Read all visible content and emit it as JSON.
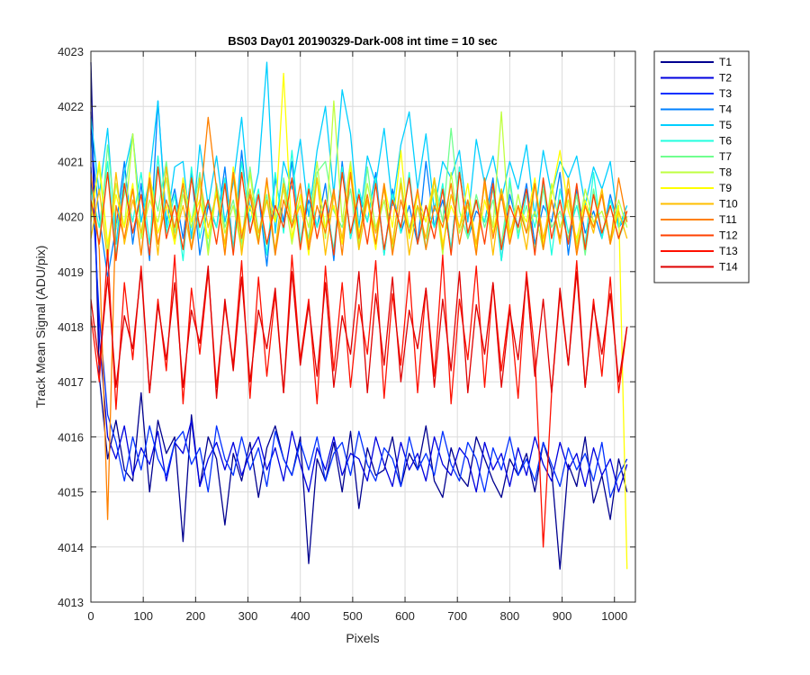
{
  "chart_data": {
    "type": "line",
    "title": "BS03 Day01 20190329-Dark-008 int time = 10 sec",
    "xlabel": "Pixels",
    "ylabel": "Track Mean Signal (ADU/pix)",
    "xlim": [
      0,
      1040
    ],
    "ylim": [
      4013,
      4023
    ],
    "xticks": [
      0,
      100,
      200,
      300,
      400,
      500,
      600,
      700,
      800,
      900,
      1000
    ],
    "yticks": [
      4013,
      4014,
      4015,
      4016,
      4017,
      4018,
      4019,
      4020,
      4021,
      4022,
      4023
    ],
    "grid": true,
    "legend_position": "outside-top-right",
    "x": [
      0,
      16,
      32,
      48,
      64,
      80,
      96,
      112,
      128,
      144,
      160,
      176,
      192,
      208,
      224,
      240,
      256,
      272,
      288,
      304,
      320,
      336,
      352,
      368,
      384,
      400,
      416,
      432,
      448,
      464,
      480,
      496,
      512,
      528,
      544,
      560,
      576,
      592,
      608,
      624,
      640,
      656,
      672,
      688,
      704,
      720,
      736,
      752,
      768,
      784,
      800,
      816,
      832,
      848,
      864,
      880,
      896,
      912,
      928,
      944,
      960,
      976,
      992,
      1008,
      1024
    ],
    "series": [
      {
        "name": "T1",
        "color": "#00008f",
        "values": [
          4022.8,
          4017.1,
          4015.6,
          4016.3,
          4015.4,
          4015.2,
          4016.8,
          4015.0,
          4016.3,
          4015.7,
          4016.0,
          4014.1,
          4016.4,
          4015.1,
          4016.0,
          4015.6,
          4014.4,
          4015.7,
          4015.2,
          4015.9,
          4014.9,
          4015.8,
          4016.2,
          4015.6,
          4015.3,
          4016.0,
          4013.7,
          4015.6,
          4015.2,
          4015.9,
          4015.0,
          4016.1,
          4014.7,
          4015.8,
          4015.3,
          4015.4,
          4016.0,
          4015.1,
          4015.7,
          4015.4,
          4016.2,
          4015.2,
          4014.9,
          4015.8,
          4015.3,
          4015.1,
          4016.0,
          4015.6,
          4015.2,
          4014.9,
          4015.6,
          4015.3,
          4015.7,
          4015.0,
          4015.9,
          4015.4,
          4013.6,
          4015.5,
          4015.1,
          4016.0,
          4014.8,
          4015.3,
          4014.5,
          4015.6,
          4015.0
        ]
      },
      {
        "name": "T2",
        "color": "#0000df",
        "values": [
          4021.9,
          4017.8,
          4016.0,
          4015.6,
          4016.2,
          4015.3,
          4015.8,
          4015.5,
          4016.1,
          4015.2,
          4015.9,
          4015.7,
          4016.3,
          4015.1,
          4015.6,
          4015.9,
          4015.4,
          4015.9,
          4015.3,
          4015.7,
          4016.0,
          4015.4,
          4015.8,
          4015.2,
          4016.1,
          4015.5,
          4015.0,
          4015.8,
          4015.4,
          4016.0,
          4015.3,
          4015.7,
          4015.6,
          4015.2,
          4016.0,
          4015.5,
          4015.1,
          4015.9,
          4015.4,
          4015.7,
          4015.2,
          4016.0,
          4015.5,
          4015.3,
          4015.8,
          4015.6,
          4015.0,
          4015.9,
          4015.4,
          4015.7,
          4015.1,
          4015.8,
          4015.3,
          4016.0,
          4015.5,
          4015.2,
          4015.9,
          4015.4,
          4015.7,
          4015.1,
          4015.8,
          4015.3,
          4015.6,
          4015.0,
          4015.5
        ]
      },
      {
        "name": "T3",
        "color": "#0030ff",
        "values": [
          4020.9,
          4018.2,
          4016.4,
          4015.9,
          4015.2,
          4016.0,
          4015.4,
          4016.2,
          4015.6,
          4015.3,
          4015.9,
          4016.1,
          4015.5,
          4015.8,
          4015.0,
          4016.2,
          4015.6,
          4015.3,
          4016.0,
          4015.4,
          4015.8,
          4015.1,
          4016.1,
          4015.6,
          4015.3,
          4015.9,
          4015.4,
          4016.0,
          4015.2,
          4015.7,
          4015.9,
          4015.3,
          4016.1,
          4015.5,
          4015.2,
          4015.8,
          4015.6,
          4015.1,
          4016.0,
          4015.4,
          4015.7,
          4015.3,
          4016.1,
          4015.5,
          4015.2,
          4015.9,
          4015.6,
          4015.0,
          4015.8,
          4015.4,
          4016.0,
          4015.3,
          4015.6,
          4015.2,
          4015.9,
          4015.5,
          4015.1,
          4015.8,
          4015.4,
          4015.7,
          4015.2,
          4015.9,
          4014.9,
          4015.3,
          4015.6
        ]
      },
      {
        "name": "T4",
        "color": "#0080ff",
        "values": [
          4021.5,
          4020.0,
          4018.9,
          4019.8,
          4021.0,
          4019.5,
          4020.6,
          4019.2,
          4022.1,
          4019.9,
          4020.5,
          4019.6,
          4020.8,
          4019.3,
          4020.2,
          4019.8,
          4020.9,
          4019.4,
          4021.2,
          4019.7,
          4020.4,
          4019.1,
          4020.7,
          4019.9,
          4021.0,
          4019.5,
          4020.3,
          4019.8,
          4020.6,
          4019.2,
          4021.0,
          4019.6,
          4020.4,
          4019.9,
          4020.8,
          4019.3,
          4020.5,
          4019.7,
          4020.2,
          4019.5,
          4021.0,
          4019.8,
          4020.3,
          4019.4,
          4020.9,
          4019.6,
          4020.1,
          4019.9,
          4020.7,
          4019.2,
          4020.4,
          4019.8,
          4020.6,
          4019.5,
          4020.2,
          4019.9,
          4020.8,
          4019.3,
          4020.5,
          4019.7,
          4020.1,
          4019.6,
          4020.4,
          4019.8,
          4020.0
        ]
      },
      {
        "name": "T5",
        "color": "#00cfff",
        "values": [
          4021.8,
          4020.4,
          4021.6,
          4019.5,
          4020.8,
          4021.5,
          4019.9,
          4020.7,
          4022.1,
          4019.8,
          4020.9,
          4021.0,
          4019.6,
          4021.3,
          4020.2,
          4021.1,
          4019.9,
          4020.6,
          4021.8,
          4020.1,
          4020.8,
          4022.8,
          4019.7,
          4021.0,
          4020.5,
          4021.4,
          4020.0,
          4021.2,
          4022.0,
          4020.4,
          4022.3,
          4021.5,
          4019.8,
          4021.1,
          4020.6,
          4021.6,
          4020.2,
          4021.3,
          4021.9,
          4020.5,
          4021.5,
          4020.1,
          4021.0,
          4020.7,
          4021.2,
          4019.9,
          4021.4,
          4020.6,
          4021.1,
          4020.3,
          4021.0,
          4020.5,
          4021.3,
          4020.0,
          4021.2,
          4020.4,
          4021.0,
          4020.7,
          4021.1,
          4020.2,
          4020.9,
          4020.5,
          4021.0,
          4019.8,
          4020.2
        ]
      },
      {
        "name": "T6",
        "color": "#20ffdf",
        "values": [
          4020.5,
          4019.8,
          4021.0,
          4019.3,
          4020.6,
          4019.9,
          4020.8,
          4019.5,
          4021.1,
          4019.7,
          4020.4,
          4019.2,
          4020.9,
          4019.6,
          4020.3,
          4019.8,
          4020.7,
          4019.4,
          4021.0,
          4019.9,
          4020.5,
          4019.3,
          4020.8,
          4019.7,
          4021.2,
          4019.5,
          4020.6,
          4019.8,
          4020.3,
          4019.4,
          4020.9,
          4019.6,
          4020.5,
          4019.9,
          4020.7,
          4019.3,
          4020.4,
          4019.7,
          4020.8,
          4019.5,
          4020.2,
          4019.8,
          4020.6,
          4019.4,
          4020.9,
          4019.6,
          4020.3,
          4019.9,
          4020.5,
          4019.2,
          4020.7,
          4019.6,
          4020.4,
          4019.8,
          4020.6,
          4019.3,
          4020.5,
          4019.7,
          4020.2,
          4019.5,
          4020.8,
          4019.6,
          4020.3,
          4019.8,
          4020.1
        ]
      },
      {
        "name": "T7",
        "color": "#70ff8f",
        "values": [
          4020.2,
          4019.5,
          4021.3,
          4019.8,
          4020.4,
          4021.5,
          4019.6,
          4020.7,
          4020.1,
          4021.0,
          4019.7,
          4020.5,
          4019.9,
          4020.8,
          4019.4,
          4020.6,
          4019.8,
          4020.3,
          4019.5,
          4020.9,
          4019.7,
          4020.4,
          4019.3,
          4020.7,
          4019.9,
          4020.2,
          4019.6,
          4020.8,
          4021.0,
          4020.1,
          4019.8,
          4020.5,
          4019.4,
          4020.9,
          4019.7,
          4020.3,
          4019.5,
          4020.6,
          4019.8,
          4020.2,
          4019.4,
          4020.7,
          4019.9,
          4021.6,
          4020.1,
          4019.6,
          4020.4,
          4019.8,
          4020.3,
          4019.5,
          4020.6,
          4019.7,
          4020.2,
          4019.4,
          4020.5,
          4019.8,
          4020.1,
          4019.6,
          4020.4,
          4019.3,
          4020.5,
          4019.7,
          4020.2,
          4019.6,
          4020.0
        ]
      },
      {
        "name": "T8",
        "color": "#bfff40",
        "values": [
          4020.1,
          4020.9,
          4019.4,
          4020.6,
          4019.8,
          4021.5,
          4019.6,
          4020.3,
          4019.9,
          4020.7,
          4019.5,
          4020.4,
          4019.8,
          4020.6,
          4019.3,
          4020.5,
          4019.7,
          4020.2,
          4019.4,
          4020.8,
          4019.6,
          4020.3,
          4019.9,
          4020.5,
          4019.5,
          4020.4,
          4019.8,
          4021.0,
          4019.6,
          4022.1,
          4019.9,
          4021.0,
          4019.5,
          4020.6,
          4019.8,
          4020.3,
          4019.4,
          4020.7,
          4019.6,
          4020.2,
          4019.9,
          4020.5,
          4019.3,
          4020.8,
          4019.7,
          4020.2,
          4019.5,
          4020.6,
          4019.8,
          4021.9,
          4019.6,
          4020.4,
          4019.7,
          4020.1,
          4019.4,
          4020.6,
          4019.8,
          4020.3,
          4019.5,
          4020.5,
          4019.9,
          4020.1,
          4019.6,
          4020.3,
          4019.8
        ]
      },
      {
        "name": "T9",
        "color": "#ffff00",
        "values": [
          4019.9,
          4021.0,
          4019.5,
          4020.4,
          4019.8,
          4020.6,
          4019.3,
          4020.8,
          4019.7,
          4020.2,
          4019.5,
          4020.7,
          4019.9,
          4020.3,
          4019.6,
          4020.5,
          4019.4,
          4020.9,
          4019.7,
          4020.2,
          4019.5,
          4020.6,
          4019.9,
          4022.6,
          4019.6,
          4020.4,
          4019.3,
          4020.7,
          4019.8,
          4020.2,
          4019.5,
          4020.9,
          4019.7,
          4020.3,
          4019.4,
          4020.6,
          4019.8,
          4021.2,
          4019.6,
          4020.4,
          4019.9,
          4020.7,
          4019.5,
          4020.2,
          4019.8,
          4020.6,
          4019.4,
          4020.3,
          4019.7,
          4020.5,
          4019.6,
          4020.2,
          4019.9,
          4020.7,
          4019.5,
          4020.4,
          4021.2,
          4020.1,
          4019.6,
          4020.3,
          4019.8,
          4020.5,
          4019.5,
          4020.2,
          4013.6
        ]
      },
      {
        "name": "T10",
        "color": "#ffbf00",
        "values": [
          4019.6,
          4020.5,
          4019.2,
          4020.8,
          4019.5,
          4020.3,
          4019.7,
          4020.6,
          4019.3,
          4020.9,
          4019.6,
          4020.2,
          4019.4,
          4020.7,
          4019.8,
          4020.4,
          4019.5,
          4020.8,
          4019.3,
          4020.5,
          4019.7,
          4020.3,
          4019.4,
          4020.6,
          4019.8,
          4020.2,
          4019.5,
          4020.7,
          4019.3,
          4020.4,
          4019.6,
          4020.8,
          4019.4,
          4020.3,
          4019.7,
          4020.5,
          4019.5,
          4020.6,
          4019.3,
          4020.2,
          4019.6,
          4020.7,
          4019.4,
          4020.4,
          4019.8,
          4020.3,
          4019.5,
          4020.6,
          4019.3,
          4020.5,
          4019.7,
          4020.2,
          4019.4,
          4020.6,
          4019.6,
          4020.3,
          4019.5,
          4020.7,
          4019.4,
          4020.2,
          4019.7,
          4020.5,
          4019.5,
          4020.1,
          4019.6
        ]
      },
      {
        "name": "T11",
        "color": "#ff8000",
        "values": [
          4020.8,
          4019.4,
          4014.5,
          4020.2,
          4019.6,
          4020.5,
          4019.3,
          4020.7,
          4019.5,
          4020.3,
          4019.8,
          4020.6,
          4019.4,
          4020.2,
          4021.8,
          4020.5,
          4019.3,
          4020.8,
          4019.6,
          4020.4,
          4019.5,
          4020.7,
          4019.3,
          4020.3,
          4019.8,
          4020.6,
          4019.4,
          4020.2,
          4019.7,
          4020.5,
          4019.3,
          4020.8,
          4019.6,
          4020.4,
          4019.5,
          4020.6,
          4019.3,
          4020.3,
          4019.7,
          4020.5,
          4019.4,
          4020.2,
          4019.8,
          4020.6,
          4019.5,
          4020.3,
          4019.3,
          4020.7,
          4019.6,
          4020.4,
          4019.5,
          4020.2,
          4019.7,
          4020.6,
          4019.4,
          4020.3,
          4019.6,
          4020.5,
          4019.3,
          4020.2,
          4019.8,
          4020.4,
          4019.5,
          4020.7,
          4019.9
        ]
      },
      {
        "name": "T12",
        "color": "#ff4000",
        "values": [
          4020.3,
          4019.5,
          4020.8,
          4019.2,
          4020.6,
          4019.7,
          4020.4,
          4019.3,
          4020.9,
          4019.6,
          4020.2,
          4019.4,
          4020.7,
          4019.8,
          4020.3,
          4019.5,
          4020.6,
          4019.3,
          4020.8,
          4019.7,
          4020.4,
          4019.5,
          4020.2,
          4019.8,
          4020.7,
          4019.4,
          4020.5,
          4019.6,
          4020.3,
          4019.3,
          4020.8,
          4019.7,
          4020.4,
          4019.5,
          4020.6,
          4019.4,
          4020.3,
          4019.8,
          4020.7,
          4019.5,
          4020.2,
          4019.6,
          4020.5,
          4019.3,
          4020.8,
          4019.7,
          4020.3,
          4019.5,
          4020.6,
          4019.4,
          4020.2,
          4019.8,
          4020.5,
          4019.3,
          4020.7,
          4019.6,
          4020.3,
          4019.5,
          4020.6,
          4019.4,
          4020.4,
          4019.7,
          4020.2,
          4019.6,
          4020.1
        ]
      },
      {
        "name": "T13",
        "color": "#ff1000",
        "values": [
          4018.2,
          4017.0,
          4019.4,
          4016.5,
          4018.8,
          4017.4,
          4019.1,
          4016.8,
          4018.5,
          4017.2,
          4019.3,
          4016.6,
          4018.7,
          4017.5,
          4019.0,
          4016.9,
          4018.4,
          4017.3,
          4019.2,
          4016.7,
          4018.9,
          4017.1,
          4018.6,
          4016.8,
          4019.3,
          4017.4,
          4018.5,
          4016.6,
          4019.1,
          4017.2,
          4018.8,
          4016.9,
          4018.4,
          4017.5,
          4019.2,
          4016.7,
          4018.6,
          4017.3,
          4019.0,
          4016.8,
          4018.7,
          4017.1,
          4019.3,
          4016.6,
          4018.5,
          4017.4,
          4019.1,
          4016.9,
          4018.8,
          4017.2,
          4018.4,
          4016.7,
          4019.0,
          4017.5,
          4014.0,
          4016.8,
          4018.6,
          4017.3,
          4019.2,
          4016.9,
          4018.5,
          4017.1,
          4018.9,
          4016.8,
          4018.0
        ]
      },
      {
        "name": "T14",
        "color": "#df0000",
        "values": [
          4018.5,
          4017.3,
          4018.9,
          4016.9,
          4018.2,
          4017.6,
          4019.0,
          4016.8,
          4018.4,
          4017.4,
          4018.8,
          4016.9,
          4018.3,
          4017.7,
          4019.1,
          4016.7,
          4018.5,
          4017.2,
          4018.9,
          4017.0,
          4018.3,
          4017.6,
          4018.7,
          4016.8,
          4019.0,
          4017.3,
          4018.4,
          4017.1,
          4018.8,
          4016.9,
          4018.2,
          4017.5,
          4019.0,
          4016.8,
          4018.6,
          4017.3,
          4018.9,
          4017.0,
          4018.3,
          4017.6,
          4018.7,
          4016.9,
          4018.5,
          4017.2,
          4019.0,
          4016.8,
          4018.4,
          4017.5,
          4018.8,
          4016.9,
          4018.3,
          4017.4,
          4018.9,
          4017.1,
          4018.5,
          4016.8,
          4018.7,
          4017.3,
          4019.0,
          4016.9,
          4018.4,
          4017.5,
          4018.6,
          4017.0,
          4018.0
        ]
      }
    ]
  }
}
